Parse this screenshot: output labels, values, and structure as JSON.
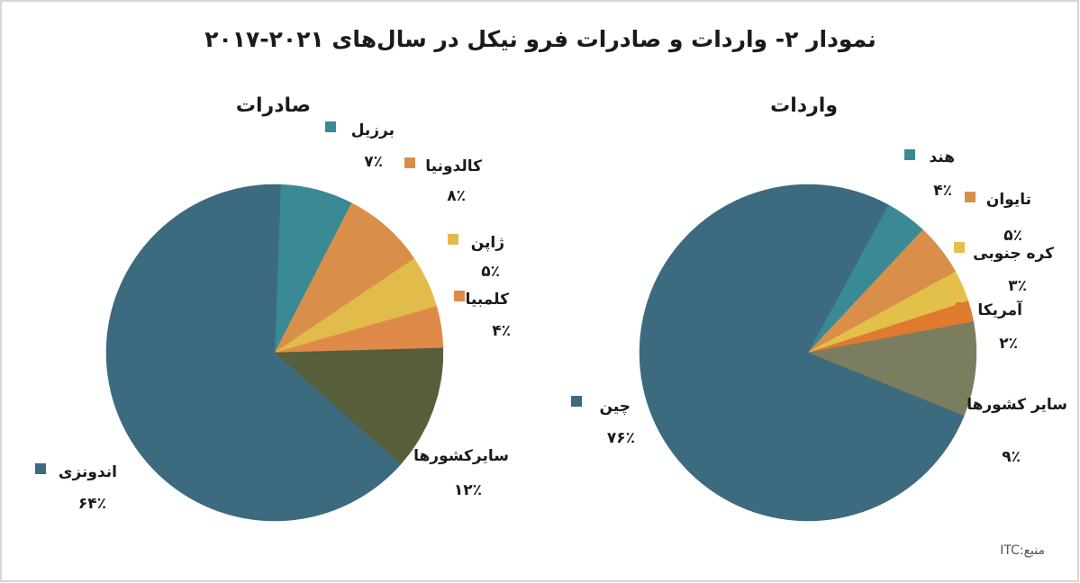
{
  "title": "نمودار ۲- واردات و صادرات فرو نیکل در سال‌های ۲۰۲۱-۲۰۱۷",
  "source": "منبع:ITC",
  "chart_data": [
    {
      "type": "pie",
      "title": "صادرات",
      "categories": [
        "برزیل",
        "کالدونیا",
        "ژاپن",
        "کلمبیا",
        "سایرکشورها",
        "اندونزی"
      ],
      "values": [
        7,
        8,
        5,
        4,
        12,
        64
      ],
      "value_labels": [
        "۷٪",
        "۸٪",
        "۵٪",
        "۴٪",
        "۱۲٪",
        "۶۴٪"
      ],
      "colors": [
        "#3a8a96",
        "#d98f4a",
        "#e2bc4a",
        "#e08a4a",
        "#565e3c",
        "#3c6a7e"
      ]
    },
    {
      "type": "pie",
      "title": "واردات",
      "categories": [
        "هند",
        "تایوان",
        "کره جنوبی",
        "آمریکا",
        "سایر کشورها",
        "چین"
      ],
      "values": [
        4,
        5,
        3,
        2,
        9,
        76
      ],
      "value_labels": [
        "۴٪",
        "۵٪",
        "۳٪",
        "۲٪",
        "۹٪",
        "۷۶٪"
      ],
      "colors": [
        "#3a8a96",
        "#d98f4a",
        "#e2c04a",
        "#e07a30",
        "#7a7d5e",
        "#3c6a7e"
      ]
    }
  ]
}
